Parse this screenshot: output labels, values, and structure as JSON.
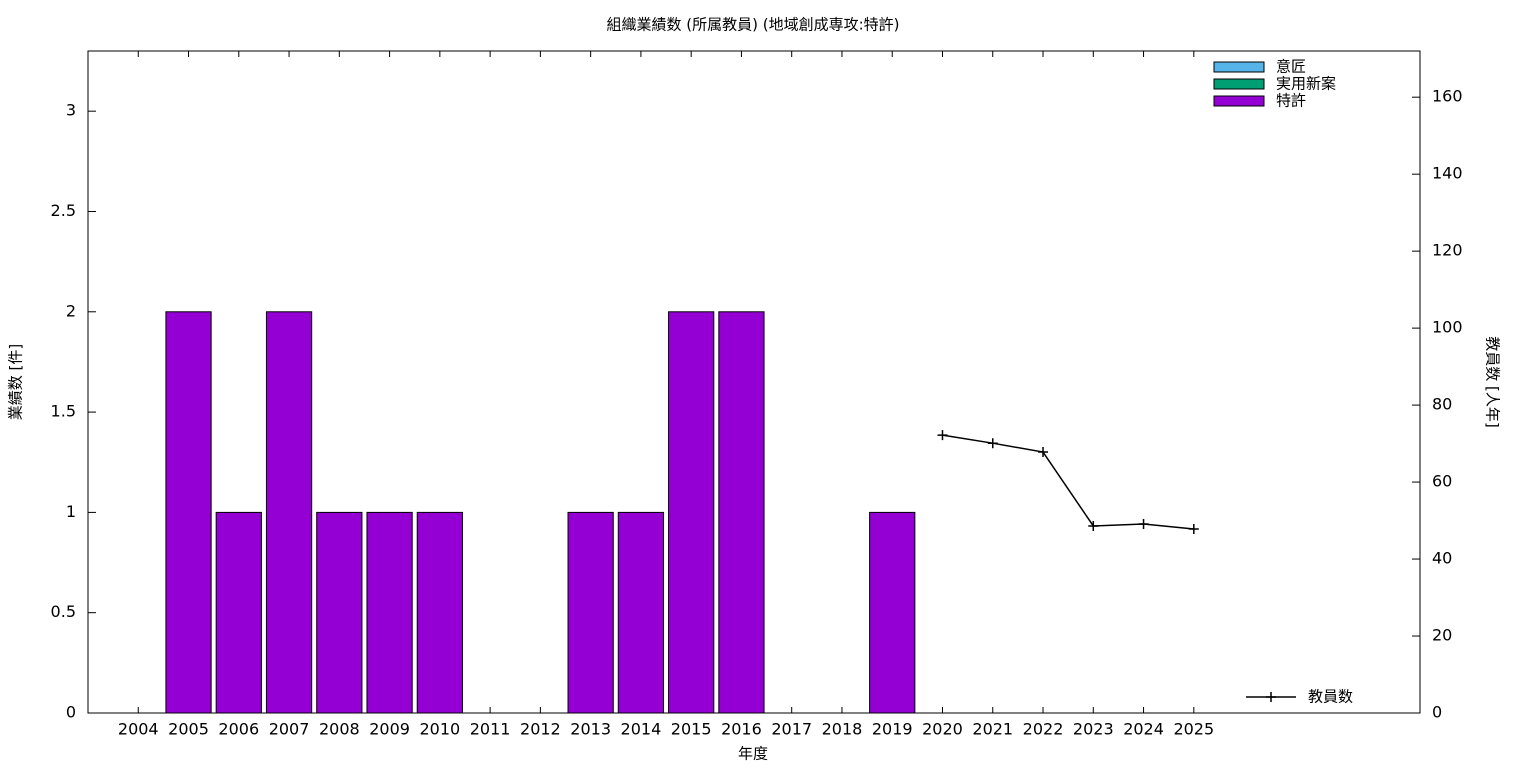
{
  "chart_data": {
    "type": "bar",
    "title": "組織業績数 (所属教員) (地域創成専攻:特許)",
    "xlabel": "年度",
    "ylabel": "業績数 [件]",
    "y2label": "教員数 [人年]",
    "categories": [
      "2004",
      "2005",
      "2006",
      "2007",
      "2008",
      "2009",
      "2010",
      "2011",
      "2012",
      "2013",
      "2014",
      "2015",
      "2016",
      "2017",
      "2018",
      "2019",
      "2020",
      "2021",
      "2022",
      "2023",
      "2024",
      "2025"
    ],
    "stacked": true,
    "series": [
      {
        "name": "意匠",
        "color": "#56b4e9",
        "values": [
          0,
          0,
          0,
          0,
          0,
          0,
          0,
          0,
          0,
          0,
          0,
          0,
          0,
          0,
          0,
          0,
          null,
          null,
          null,
          null,
          null,
          null
        ]
      },
      {
        "name": "実用新案",
        "color": "#009e73",
        "values": [
          0,
          0,
          0,
          0,
          0,
          0,
          0,
          0,
          0,
          0,
          0,
          0,
          0,
          0,
          0,
          0,
          null,
          null,
          null,
          null,
          null,
          null
        ]
      },
      {
        "name": "特許",
        "color": "#9400d3",
        "values": [
          0,
          2,
          1,
          2,
          1,
          1,
          1,
          0,
          0,
          1,
          1,
          2,
          2,
          0,
          0,
          1,
          null,
          null,
          null,
          null,
          null,
          null
        ]
      },
      {
        "name": "教員数",
        "type": "line",
        "axis": "y2",
        "color": "#000000",
        "values": [
          null,
          null,
          null,
          null,
          null,
          null,
          null,
          null,
          null,
          null,
          null,
          null,
          null,
          null,
          null,
          null,
          72.2,
          70.1,
          67.8,
          48.6,
          49.1,
          47.8
        ]
      }
    ],
    "ylim": [
      0,
      3.3
    ],
    "yticks": [
      0,
      0.5,
      1,
      1.5,
      2,
      2.5,
      3
    ],
    "y2lim": [
      0,
      172
    ],
    "y2ticks": [
      0,
      20,
      40,
      60,
      80,
      100,
      120,
      140,
      160
    ],
    "bar_legend": "top right",
    "line_legend": "bottom right",
    "grid": false
  }
}
